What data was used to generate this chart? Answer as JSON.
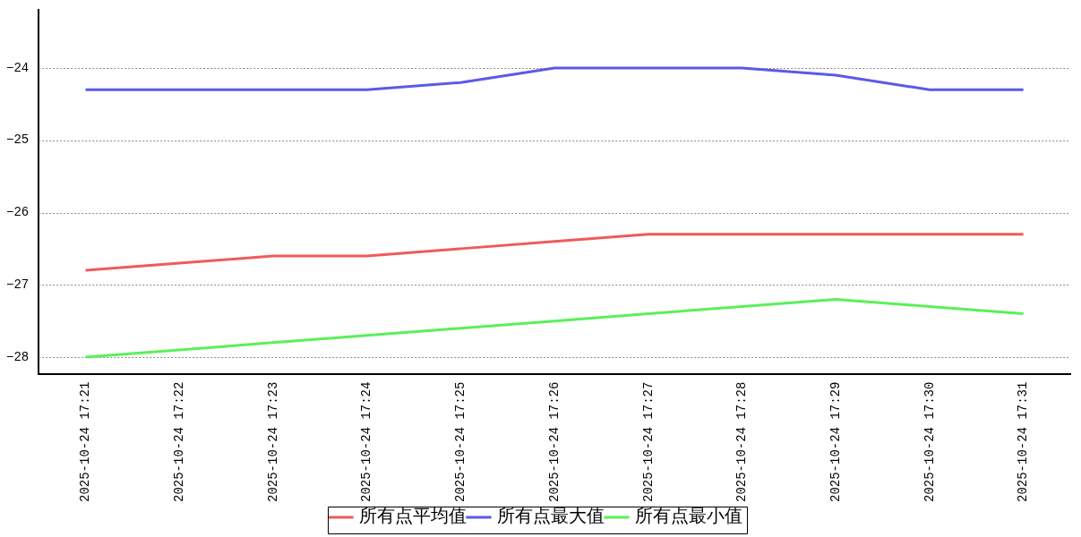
{
  "chart_data": {
    "type": "line",
    "categories": [
      "2025-10-24 17:21",
      "2025-10-24 17:22",
      "2025-10-24 17:23",
      "2025-10-24 17:24",
      "2025-10-24 17:25",
      "2025-10-24 17:26",
      "2025-10-24 17:27",
      "2025-10-24 17:28",
      "2025-10-24 17:29",
      "2025-10-24 17:30",
      "2025-10-24 17:31"
    ],
    "series": [
      {
        "name": "所有点平均值",
        "color": "#f05a5a",
        "values": [
          -26.8,
          -26.7,
          -26.6,
          -26.6,
          -26.5,
          -26.4,
          -26.3,
          -26.3,
          -26.3,
          -26.3,
          -26.3
        ]
      },
      {
        "name": "所有点最大值",
        "color": "#5a5ae6",
        "values": [
          -24.3,
          -24.3,
          -24.3,
          -24.3,
          -24.2,
          -24.0,
          -24.0,
          -24.0,
          -24.1,
          -24.3,
          -24.3
        ]
      },
      {
        "name": "所有点最小值",
        "color": "#5af05a",
        "values": [
          -28.0,
          -27.9,
          -27.8,
          -27.7,
          -27.6,
          -27.5,
          -27.4,
          -27.3,
          -27.2,
          -27.3,
          -27.4
        ]
      }
    ],
    "ylim": [
      -28.23,
      -23.2
    ],
    "yticks": [
      -28,
      -27,
      -26,
      -25,
      -24
    ],
    "grid": "y",
    "legend": "bottom",
    "marker": "none",
    "line_style": "solid"
  }
}
